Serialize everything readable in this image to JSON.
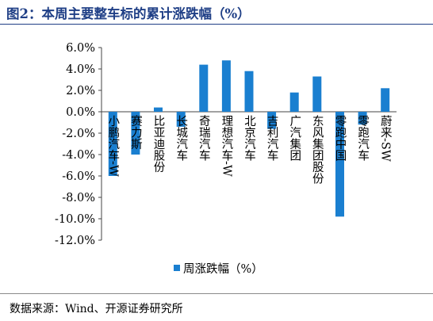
{
  "figure": {
    "title": "图2：本周主要整车标的累计涨跌幅（%）",
    "source": "数据来源：Wind、开源证券研究所"
  },
  "chart_data": {
    "type": "bar",
    "categories": [
      "小鹏汽车-W",
      "赛力斯",
      "比亚迪股份",
      "长城汽车",
      "奇瑞汽车",
      "理想汽车-W",
      "北京汽车",
      "吉利汽车",
      "广汽集团",
      "东风集团股份",
      "零跑中国",
      "零跑汽车",
      "蔚来-SW"
    ],
    "series": [
      {
        "name": "周涨跌幅（%）",
        "values": [
          -6.0,
          -4.0,
          0.4,
          -1.4,
          4.4,
          4.8,
          3.8,
          -1.6,
          1.8,
          3.3,
          -9.8,
          -1.2,
          2.2
        ]
      }
    ],
    "ylim": [
      -12,
      6
    ],
    "yticks": [
      6,
      4,
      2,
      0,
      -2,
      -4,
      -6,
      -8,
      -10,
      -12
    ],
    "ytick_labels": [
      "6.0%",
      "4.0%",
      "2.0%",
      "0.0%",
      "-2.0%",
      "-4.0%",
      "-6.0%",
      "-8.0%",
      "-10.0%",
      "-12.0%"
    ],
    "legend_position": "bottom",
    "grid": false,
    "bar_color": "#1a7fd0"
  }
}
